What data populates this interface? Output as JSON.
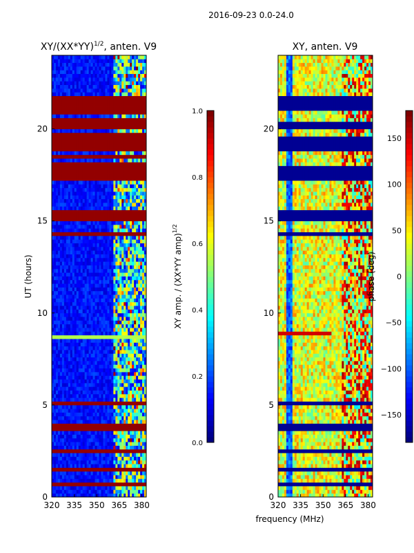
{
  "suptitle": "2016-09-23 0.0-24.0",
  "colors": {
    "jet": [
      "#00007f",
      "#0000ff",
      "#007fff",
      "#00ffff",
      "#7fff7f",
      "#ffff00",
      "#ff7f00",
      "#ff0000",
      "#7f0000"
    ],
    "frame": "#000000",
    "rfi_band": "#7f0000",
    "blank_band": "#00007f"
  },
  "chart_data": [
    {
      "type": "heatmap",
      "title_main": "XY/(XX*YY)",
      "title_sup": "1/2",
      "title_rest": ", anten. V9",
      "xlabel": "",
      "ylabel": "UT (hours)",
      "xlim": [
        320,
        383
      ],
      "ylim": [
        0,
        24
      ],
      "xticks": [
        320,
        335,
        350,
        365,
        380
      ],
      "yticks": [
        0,
        5,
        10,
        15,
        20
      ],
      "grid": false,
      "colorbar": {
        "label_main": "XY amp. / (XX*YY amp)",
        "label_sup": "1/2",
        "range": [
          0.0,
          1.0
        ],
        "ticks": [
          "0.0",
          "0.2",
          "0.4",
          "0.6",
          "0.8",
          "1.0"
        ]
      }
    },
    {
      "type": "heatmap",
      "title": "XY, anten. V9",
      "xlabel": "frequency (MHz)",
      "ylabel": "",
      "xlim": [
        320,
        383
      ],
      "ylim": [
        0,
        24
      ],
      "xticks": [
        320,
        335,
        350,
        365,
        380
      ],
      "yticks": [
        0,
        5,
        10,
        15,
        20
      ],
      "grid": false,
      "colorbar": {
        "label": "phase (deg)",
        "range": [
          -180,
          180
        ],
        "ticks": [
          "−150",
          "−100",
          "−50",
          "0",
          "50",
          "100",
          "150"
        ]
      }
    }
  ]
}
